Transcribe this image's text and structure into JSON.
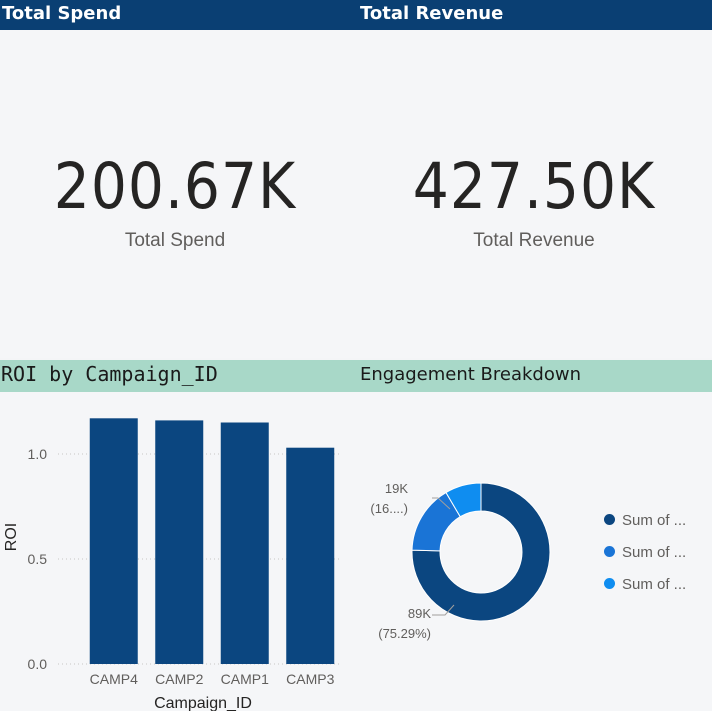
{
  "cards": {
    "spend": {
      "header": "Total Spend",
      "value": "200.67K",
      "label": "Total Spend"
    },
    "revenue": {
      "header": "Total Revenue",
      "value": "427.50K",
      "label": "Total Revenue"
    }
  },
  "roi_panel": {
    "header": "ROI by Campaign_ID"
  },
  "engagement_panel": {
    "header": "Engagement Breakdown"
  },
  "colors": {
    "header_blue": "#0a3f73",
    "header_green": "#a8d8c8",
    "bar": "#0b4680",
    "donut": [
      "#0b4680",
      "#1a74d6",
      "#0f8df0"
    ]
  },
  "chart_data": [
    {
      "type": "bar",
      "title": "ROI by Campaign_ID",
      "xlabel": "Campaign_ID",
      "ylabel": "ROI",
      "categories": [
        "CAMP4",
        "CAMP2",
        "CAMP1",
        "CAMP3"
      ],
      "values": [
        1.17,
        1.16,
        1.15,
        1.03
      ],
      "ylim": [
        0,
        1.2
      ],
      "yticks": [
        "0.0",
        "0.5",
        "1.0"
      ],
      "grid": true
    },
    {
      "type": "pie",
      "title": "Engagement Breakdown",
      "donut": true,
      "series": [
        {
          "name": "Sum of ...",
          "value": 89,
          "percent": 75.29
        },
        {
          "name": "Sum of ...",
          "value": 19,
          "percent": 16.0
        },
        {
          "name": "Sum of ...",
          "value": 10,
          "percent": 8.71
        }
      ],
      "data_labels": [
        {
          "value": "89K",
          "percent": "(75.29%)"
        },
        {
          "value": "19K",
          "percent": "(16....)"
        }
      ],
      "legend_position": "right"
    }
  ]
}
